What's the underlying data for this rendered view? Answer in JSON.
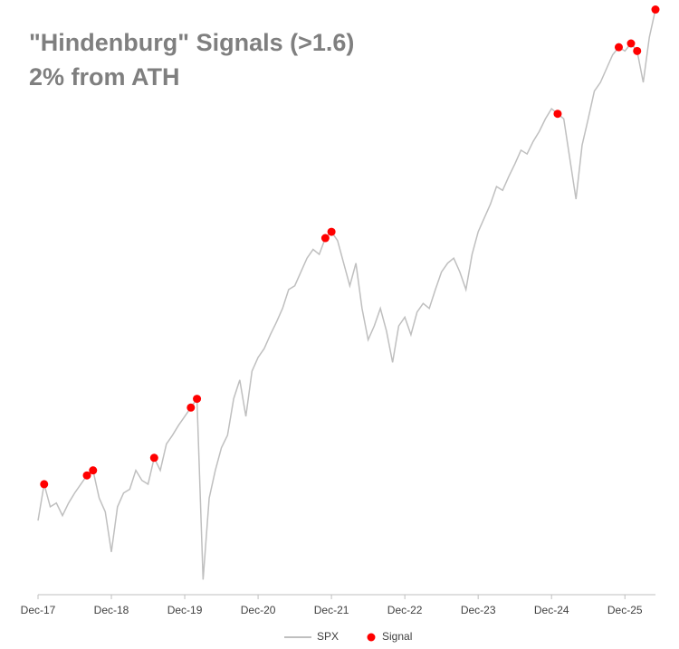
{
  "chart_data": {
    "type": "line",
    "title": "\"Hindenburg\" Signals (>1.6)",
    "subtitle": "2% from ATH",
    "categories": [
      "Dec-17",
      null,
      null,
      null,
      null,
      null,
      null,
      null,
      null,
      null,
      null,
      null,
      "Dec-18",
      null,
      null,
      null,
      null,
      null,
      null,
      null,
      null,
      null,
      null,
      null,
      "Dec-19",
      null,
      null,
      null,
      null,
      null,
      null,
      null,
      null,
      null,
      null,
      null,
      "Dec-20",
      null,
      null,
      null,
      null,
      null,
      null,
      null,
      null,
      null,
      null,
      null,
      "Dec-21",
      null,
      null,
      null,
      null,
      null,
      null,
      null,
      null,
      null,
      null,
      null,
      "Dec-22",
      null,
      null,
      null,
      null,
      null,
      null,
      null,
      null,
      null,
      null,
      null,
      "Dec-23",
      null,
      null,
      null,
      null,
      null,
      null,
      null,
      null,
      null,
      null,
      null,
      "Dec-24",
      null,
      null,
      null,
      null,
      null,
      null,
      null,
      null,
      null,
      null,
      null,
      "Dec-25",
      null,
      null,
      null,
      null,
      null
    ],
    "series": [
      {
        "name": "SPX",
        "color": "#bfbfbf",
        "style": "line",
        "values": [
          2790,
          3080,
          2900,
          2930,
          2830,
          2930,
          3010,
          3080,
          3150,
          3190,
          2970,
          2860,
          2540,
          2900,
          3010,
          3040,
          3190,
          3110,
          3080,
          3290,
          3190,
          3400,
          3470,
          3550,
          3620,
          3690,
          3760,
          2320,
          2970,
          3190,
          3370,
          3470,
          3760,
          3910,
          3620,
          3980,
          4090,
          4160,
          4270,
          4370,
          4480,
          4630,
          4660,
          4770,
          4880,
          4950,
          4910,
          5040,
          5090,
          5020,
          4840,
          4660,
          4840,
          4480,
          4230,
          4340,
          4480,
          4300,
          4050,
          4340,
          4410,
          4270,
          4450,
          4520,
          4480,
          4630,
          4770,
          4840,
          4880,
          4770,
          4630,
          4910,
          5090,
          5200,
          5310,
          5450,
          5420,
          5530,
          5630,
          5740,
          5710,
          5810,
          5890,
          5990,
          6070,
          6030,
          5990,
          5670,
          5350,
          5780,
          5990,
          6210,
          6280,
          6390,
          6500,
          6560,
          6530,
          6590,
          6530,
          6280,
          6640,
          6860
        ]
      },
      {
        "name": "Signal",
        "color": "#ff0000",
        "style": "dot",
        "values": [
          null,
          3080,
          null,
          null,
          null,
          null,
          null,
          null,
          3150,
          3190,
          null,
          null,
          null,
          null,
          null,
          null,
          null,
          null,
          null,
          3290,
          null,
          null,
          null,
          null,
          null,
          3690,
          3760,
          null,
          null,
          null,
          null,
          null,
          null,
          null,
          null,
          null,
          null,
          null,
          null,
          null,
          null,
          null,
          null,
          null,
          null,
          null,
          null,
          5040,
          5090,
          null,
          null,
          null,
          null,
          null,
          null,
          null,
          null,
          null,
          null,
          null,
          null,
          null,
          null,
          null,
          null,
          null,
          null,
          null,
          null,
          null,
          null,
          null,
          null,
          null,
          null,
          null,
          null,
          null,
          null,
          null,
          null,
          null,
          null,
          null,
          null,
          6030,
          null,
          null,
          null,
          null,
          null,
          null,
          null,
          null,
          null,
          6560,
          null,
          6590,
          6530,
          null,
          null,
          6860
        ]
      }
    ],
    "ylim": [
      2200,
      6900
    ],
    "legend": "bottom"
  }
}
